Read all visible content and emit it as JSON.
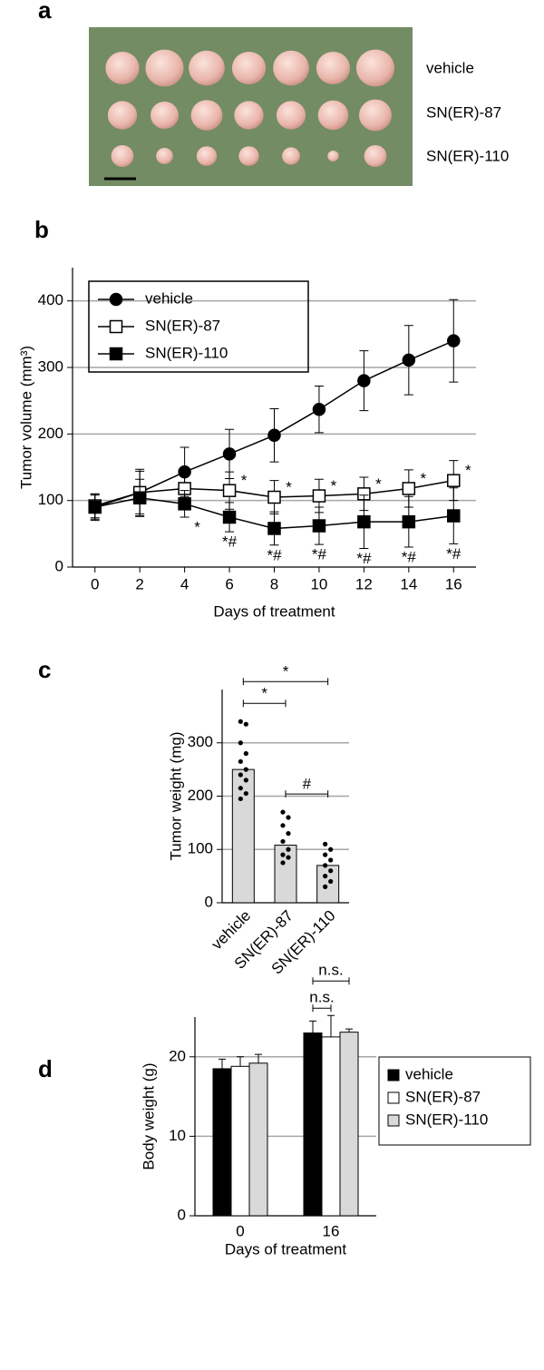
{
  "photo": {
    "panel_label": "a",
    "rows": [
      "vehicle",
      "SN(ER)-87",
      "SN(ER)-110"
    ]
  },
  "chart_data": [
    {
      "type": "line",
      "panel_label": "b",
      "xlabel": "Days of treatment",
      "ylabel": "Tumor volume (mm³)",
      "x": [
        0,
        2,
        4,
        6,
        8,
        10,
        12,
        14,
        16
      ],
      "xlim": [
        -1,
        17
      ],
      "xticks": [
        0,
        2,
        4,
        6,
        8,
        10,
        12,
        14,
        16
      ],
      "ylim": [
        0,
        450
      ],
      "yticks": [
        0,
        100,
        200,
        300,
        400
      ],
      "grid": true,
      "legend": "upper left",
      "series": [
        {
          "name": "vehicle",
          "color": "#000000",
          "marker": "circle",
          "filled": true,
          "values": [
            90,
            112,
            143,
            170,
            198,
            237,
            280,
            311,
            340
          ],
          "errors": [
            20,
            35,
            37,
            37,
            40,
            35,
            45,
            52,
            62
          ],
          "annotations": [
            null,
            null,
            null,
            null,
            null,
            null,
            null,
            null,
            null
          ]
        },
        {
          "name": "SN(ER)-87",
          "color": "#000000",
          "marker": "square",
          "filled": false,
          "values": [
            92,
            112,
            118,
            115,
            105,
            107,
            110,
            118,
            130
          ],
          "errors": [
            18,
            32,
            30,
            28,
            25,
            25,
            25,
            28,
            30
          ],
          "annotations": [
            null,
            null,
            null,
            "*",
            "*",
            "*",
            "*",
            "*",
            "*"
          ]
        },
        {
          "name": "SN(ER)-110",
          "color": "#000000",
          "marker": "square",
          "filled": true,
          "values": [
            90,
            104,
            95,
            75,
            58,
            62,
            68,
            68,
            77
          ],
          "errors": [
            18,
            28,
            20,
            22,
            25,
            28,
            40,
            38,
            42
          ],
          "annotations": [
            null,
            null,
            "*",
            "*#",
            "*#",
            "*#",
            "*#",
            "*#",
            "*#"
          ]
        }
      ]
    },
    {
      "type": "bar",
      "panel_label": "c",
      "ylabel": "Tumor weight (mg)",
      "categories": [
        "vehicle",
        "SN(ER)-87",
        "SN(ER)-110"
      ],
      "values": [
        250,
        108,
        70
      ],
      "color": "#d9d9d9",
      "points": [
        [
          340,
          335,
          300,
          280,
          265,
          250,
          240,
          230,
          215,
          205,
          195
        ],
        [
          170,
          160,
          145,
          130,
          115,
          100,
          90,
          85,
          75
        ],
        [
          110,
          100,
          90,
          80,
          70,
          60,
          50,
          40,
          30
        ]
      ],
      "ylim": [
        0,
        400
      ],
      "yticks": [
        0,
        100,
        200,
        300
      ],
      "grid": true,
      "brackets": [
        {
          "from": 0,
          "to": 1,
          "label": "*"
        },
        {
          "from": 0,
          "to": 2,
          "label": "*"
        },
        {
          "from": 1,
          "to": 2,
          "label": "#"
        }
      ]
    },
    {
      "type": "grouped_bar",
      "panel_label": "d",
      "xlabel": "Days of treatment",
      "ylabel": "Body weight (g)",
      "categories": [
        "0",
        "16"
      ],
      "ylim": [
        0,
        25
      ],
      "yticks": [
        0,
        10,
        20
      ],
      "grid": true,
      "legend": "right",
      "series": [
        {
          "name": "vehicle",
          "color": "#000000",
          "values": [
            18.5,
            23
          ],
          "errors": [
            1.2,
            1.5
          ]
        },
        {
          "name": "SN(ER)-87",
          "color": "#ffffff",
          "values": [
            18.8,
            22.5
          ],
          "errors": [
            1.2,
            2.7
          ]
        },
        {
          "name": "SN(ER)-110",
          "color": "#d9d9d9",
          "values": [
            19.2,
            23.1
          ],
          "errors": [
            1.1,
            0.4
          ]
        }
      ],
      "brackets": [
        {
          "category": 1,
          "from": 0,
          "to": 1,
          "label": "n.s."
        },
        {
          "category": 1,
          "from": 0,
          "to": 2,
          "label": "n.s."
        }
      ]
    }
  ]
}
